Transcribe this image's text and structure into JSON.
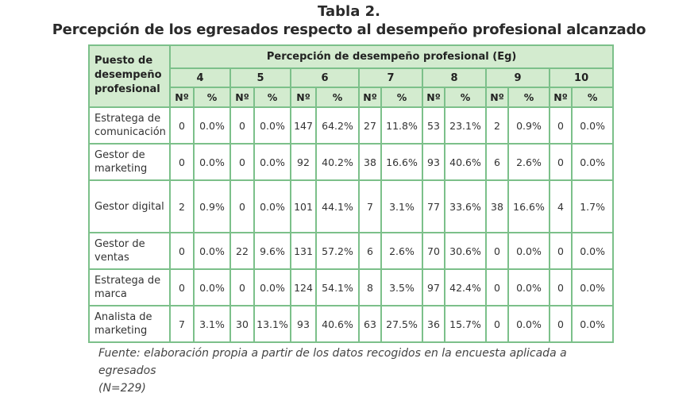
{
  "title_line1": "Tabla 2.",
  "title_line2": "Percepción de los egresados respecto al desempeño profesional alcanzado",
  "header": {
    "puesto_line1": "Puesto de",
    "puesto_line2": "desempeño",
    "puesto_line3": "profesional",
    "group": "Percepción de desempeño profesional (Eg)",
    "levels": [
      "4",
      "5",
      "6",
      "7",
      "8",
      "9",
      "10"
    ],
    "n_label": "Nº",
    "pct_label": "%"
  },
  "rows": [
    {
      "line1": "Estratega de",
      "line2": "comunicación",
      "cells": [
        "0",
        "0.0%",
        "0",
        "0.0%",
        "147",
        "64.2%",
        "27",
        "11.8%",
        "53",
        "23.1%",
        "2",
        "0.9%",
        "0",
        "0.0%"
      ]
    },
    {
      "line1": "Gestor de",
      "line2": "marketing",
      "cells": [
        "0",
        "0.0%",
        "0",
        "0.0%",
        "92",
        "40.2%",
        "38",
        "16.6%",
        "93",
        "40.6%",
        "6",
        "2.6%",
        "0",
        "0.0%"
      ]
    },
    {
      "line1": "Gestor digital",
      "line2": "",
      "cells": [
        "2",
        "0.9%",
        "0",
        "0.0%",
        "101",
        "44.1%",
        "7",
        "3.1%",
        "77",
        "33.6%",
        "38",
        "16.6%",
        "4",
        "1.7%"
      ]
    },
    {
      "line1": "Gestor de",
      "line2": "ventas",
      "cells": [
        "0",
        "0.0%",
        "22",
        "9.6%",
        "131",
        "57.2%",
        "6",
        "2.6%",
        "70",
        "30.6%",
        "0",
        "0.0%",
        "0",
        "0.0%"
      ]
    },
    {
      "line1": "Estratega de",
      "line2": "marca",
      "cells": [
        "0",
        "0.0%",
        "0",
        "0.0%",
        "124",
        "54.1%",
        "8",
        "3.5%",
        "97",
        "42.4%",
        "0",
        "0.0%",
        "0",
        "0.0%"
      ]
    },
    {
      "line1": "Analista de",
      "line2": "marketing",
      "cells": [
        "7",
        "3.1%",
        "30",
        "13.1%",
        "93",
        "40.6%",
        "63",
        "27.5%",
        "36",
        "15.7%",
        "0",
        "0.0%",
        "0",
        "0.0%"
      ]
    }
  ],
  "footnote_line1": "Fuente: elaboración propia a partir de los datos recogidos en la encuesta aplicada a egresados",
  "footnote_line2": "(N=229)"
}
